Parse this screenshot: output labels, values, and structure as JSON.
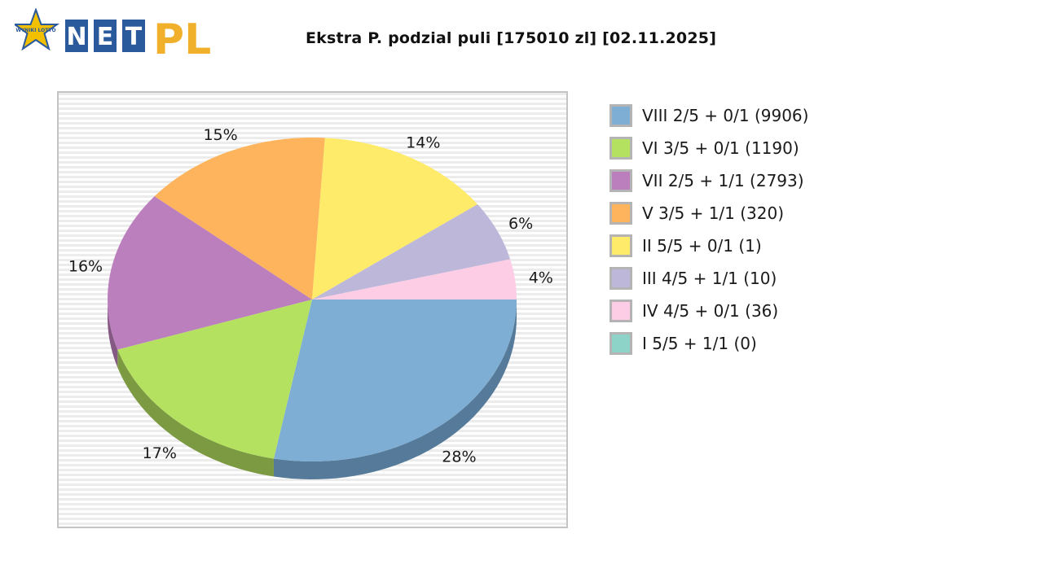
{
  "header": {
    "logo_badge_text": "WYNIKI LOTTO",
    "logo_text_net": "NET",
    "logo_text_pl": "PL",
    "title": "Ekstra P. podzial puli [175010 zl] [02.11.2025]"
  },
  "colors": {
    "logo_blue": "#2a5a9c",
    "logo_orange": "#f0b02c",
    "logo_star": "#f2c000"
  },
  "chart_data": {
    "type": "pie",
    "title": "Ekstra P. podzial puli [175010 zl] [02.11.2025]",
    "units": "%",
    "slices": [
      {
        "label": "VIII 2/5 + 0/1 (9906)",
        "value": 28,
        "pct_label": "28%",
        "color": "#7eaed4",
        "side_color": "#567b9a"
      },
      {
        "label": "VI 3/5 + 0/1 (1190)",
        "value": 17,
        "pct_label": "17%",
        "color": "#b5e161",
        "side_color": "#7c9a42"
      },
      {
        "label": "VII 2/5 + 1/1 (2793)",
        "value": 16,
        "pct_label": "16%",
        "color": "#bc7fbd",
        "side_color": "#845a84"
      },
      {
        "label": "V 3/5 + 1/1 (320)",
        "value": 15,
        "pct_label": "15%",
        "color": "#fdb45c",
        "side_color": "#b07e40"
      },
      {
        "label": "II 5/5 + 0/1 (1)",
        "value": 14,
        "pct_label": "14%",
        "color": "#feeb6a",
        "side_color": "#b0a34a"
      },
      {
        "label": "III 4/5 + 1/1 (10)",
        "value": 6,
        "pct_label": "6%",
        "color": "#bdb8da",
        "side_color": "#848099"
      },
      {
        "label": "IV 4/5 + 0/1 (36)",
        "value": 4,
        "pct_label": "4%",
        "color": "#fccde5",
        "side_color": "#b08fa0"
      },
      {
        "label": "I 5/5 + 1/1 (0)",
        "value": 0,
        "pct_label": "",
        "color": "#8dd3c7",
        "side_color": "#62938b"
      }
    ],
    "legend_position": "right",
    "style": "3d-pie"
  }
}
